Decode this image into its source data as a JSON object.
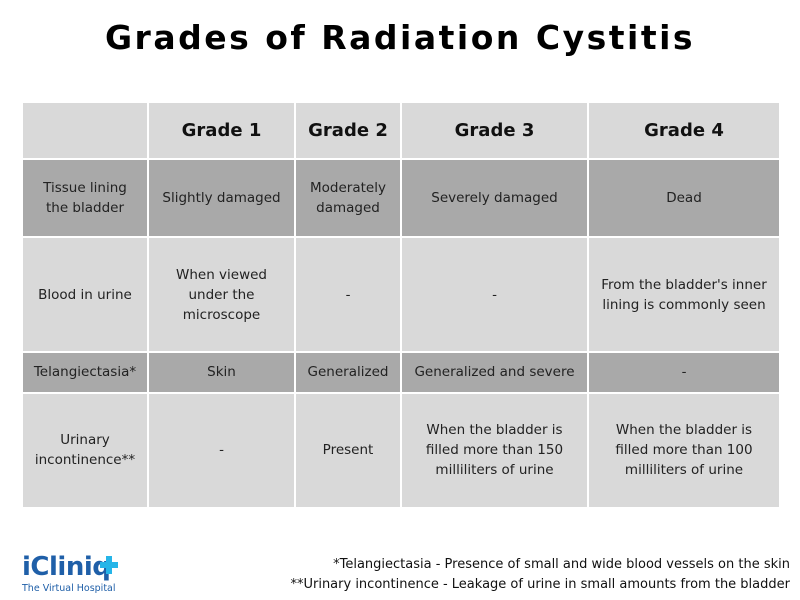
{
  "title": "Grades of Radiation Cystitis",
  "table": {
    "header": [
      "",
      "Grade 1",
      "Grade 2",
      "Grade 3",
      "Grade 4"
    ],
    "rows": [
      [
        "Tissue lining the bladder",
        "Slightly damaged",
        "Moderately damaged",
        "Severely damaged",
        "Dead"
      ],
      [
        "Blood in urine",
        "When viewed under the microscope",
        "-",
        "-",
        "From the bladder's inner lining is commonly seen"
      ],
      [
        "Telangiectasia*",
        "Skin",
        "Generalized",
        "Generalized and severe",
        "-"
      ],
      [
        "Urinary incontinence**",
        "-",
        "Present",
        "When the bladder is filled more than 150 milliliters of urine",
        "When the bladder is filled more than 100 milliliters of urine"
      ]
    ]
  },
  "footnotes": [
    "*Telangiectasia - Presence of small and wide blood vessels on the skin",
    "**Urinary incontinence - Leakage of urine in small amounts from the bladder"
  ],
  "logo": {
    "name": "iCliniq",
    "tagline": "The Virtual Hospital"
  }
}
